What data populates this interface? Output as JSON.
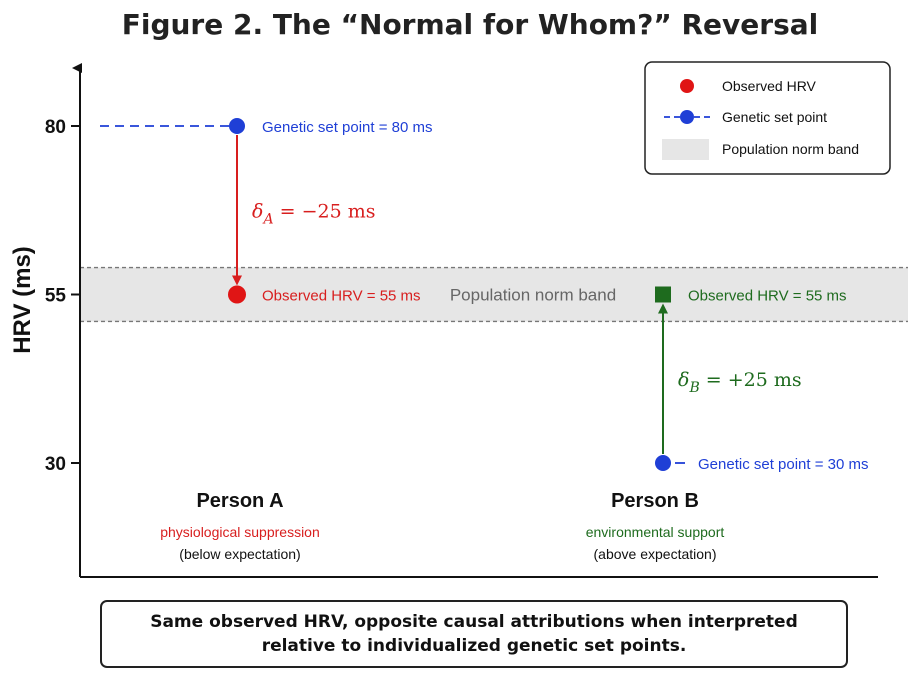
{
  "chart_data": {
    "type": "scatter",
    "title": "Figure 2. The “Normal for Whom?” Reversal",
    "ylabel": "HRV (ms)",
    "yticks": [
      30,
      55,
      80
    ],
    "ylim": [
      20,
      87
    ],
    "categories": [
      "Person A",
      "Person B"
    ],
    "population_norm_band": {
      "low": 51,
      "high": 59,
      "label": "Population norm band"
    },
    "persons": [
      {
        "name": "Person A",
        "subtitle": "physiological suppression",
        "note": "(below expectation)",
        "genetic_set_point": 80,
        "observed_hrv": 55,
        "delta": -25,
        "set_point_label": "Genetic set point = 80 ms",
        "observed_label": "Observed HRV = 55 ms",
        "delta_rhs": " = −25 ms",
        "delta_subscript": "A",
        "color": "#d81e1e",
        "observed_marker": "circle"
      },
      {
        "name": "Person B",
        "subtitle": "environmental support",
        "note": "(above expectation)",
        "genetic_set_point": 30,
        "observed_hrv": 55,
        "delta": 25,
        "set_point_label": "Genetic set point = 30 ms",
        "observed_label": "Observed HRV = 55 ms",
        "delta_rhs": " = +25 ms",
        "delta_subscript": "B",
        "color": "#1e6b1e",
        "observed_marker": "square"
      }
    ],
    "legend": {
      "position": "top-right",
      "entries": [
        "Observed HRV",
        "Genetic set point",
        "Population norm band"
      ]
    }
  },
  "colors": {
    "observed": "#e01515",
    "set_point": "#1f3fd6",
    "band": "#e6e6e6",
    "band_edge": "#777777",
    "axis": "#111111"
  },
  "delta_symbol": "δ",
  "caption": "Same observed HRV, opposite causal attributions when interpreted relative to individualized genetic set points."
}
